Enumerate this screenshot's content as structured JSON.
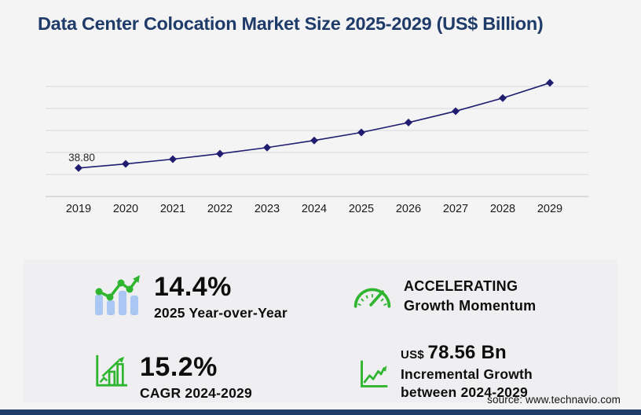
{
  "title": "Data Center Colocation Market Size 2025-2029 (US$ Billion)",
  "source": "source: www.technavio.com",
  "colors": {
    "page_bg": "#f4f4f5",
    "panel_bg": "#efeff1",
    "title_navy": "#1f3b69",
    "chart_line": "#201d70",
    "grid": "#d9d9db",
    "axis": "#bebec1",
    "green": "#2fb52f",
    "icon_blue": "#a9c7f2",
    "text_dark": "#0d0d0d",
    "footer_navy": "#1f3b69"
  },
  "stats": {
    "yoy": {
      "value": "14.4%",
      "label": "2025 Year-over-Year"
    },
    "momentum": {
      "line1": "ACCELERATING",
      "line2": "Growth Momentum"
    },
    "cagr": {
      "value": "15.2%",
      "label": "CAGR 2024-2029"
    },
    "incremental": {
      "currency": "US$",
      "value": "78.56 Bn",
      "label_line1": "Incremental Growth",
      "label_line2": "between 2024-2029"
    }
  },
  "chart_data": {
    "type": "line",
    "title": "Data Center Colocation Market Size 2025-2029 (US$ Billion)",
    "x": [
      2019,
      2020,
      2021,
      2022,
      2023,
      2024,
      2025,
      2026,
      2027,
      2028,
      2029
    ],
    "series": [
      {
        "name": "Market size (US$ Billion)",
        "values": [
          38.8,
          44.4,
          50.9,
          58.3,
          66.7,
          76.4,
          87.3,
          100.8,
          116.3,
          134.2,
          154.9
        ]
      }
    ],
    "point_label": {
      "x": 2019,
      "text": "38.80"
    },
    "ylim": [
      0,
      160
    ],
    "gridline_values": [
      0,
      30,
      60,
      90,
      120,
      150
    ],
    "grid": true,
    "legend": "none",
    "marker": "diamond"
  }
}
